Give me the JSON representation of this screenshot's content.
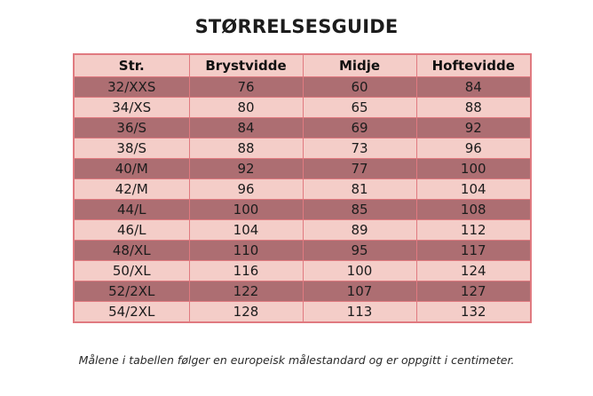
{
  "title": "STØRRELSESGUIDE",
  "table": {
    "headers": [
      "Str.",
      "Brystvidde",
      "Midje",
      "Hoftevidde"
    ],
    "rows": [
      [
        "32/XXS",
        "76",
        "60",
        "84"
      ],
      [
        "34/XS",
        "80",
        "65",
        "88"
      ],
      [
        "36/S",
        "84",
        "69",
        "92"
      ],
      [
        "38/S",
        "88",
        "73",
        "96"
      ],
      [
        "40/M",
        "92",
        "77",
        "100"
      ],
      [
        "42/M",
        "96",
        "81",
        "104"
      ],
      [
        "44/L",
        "100",
        "85",
        "108"
      ],
      [
        "46/L",
        "104",
        "89",
        "112"
      ],
      [
        "48/XL",
        "110",
        "95",
        "117"
      ],
      [
        "50/XL",
        "116",
        "100",
        "124"
      ],
      [
        "52/2XL",
        "122",
        "107",
        "127"
      ],
      [
        "54/2XL",
        "128",
        "113",
        "132"
      ]
    ]
  },
  "footnote": "Målene i tabellen følger en europeisk målestandard og er oppgitt i centimeter.",
  "colors": {
    "header_bg": "#f4cdc8",
    "row_dark": "#ad6e72",
    "row_light": "#f4cdc8",
    "border": "#e07a80"
  }
}
